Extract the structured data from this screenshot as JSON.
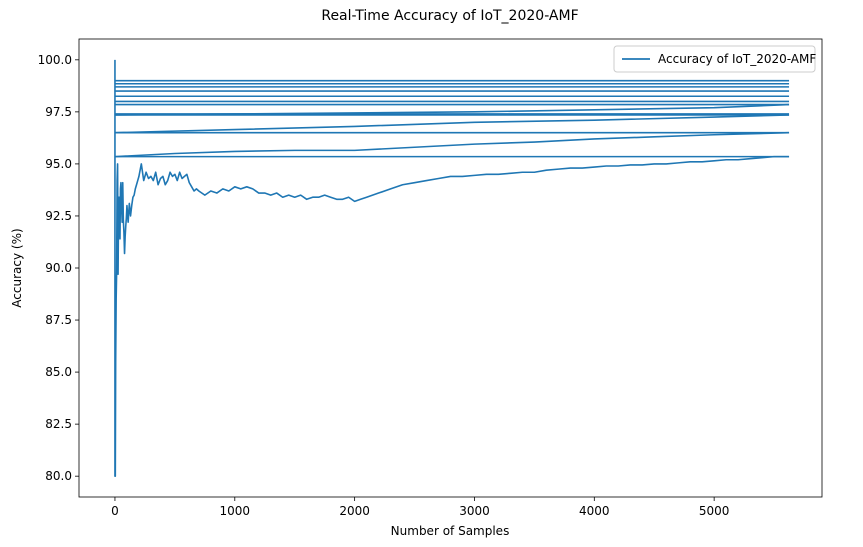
{
  "chart_data": {
    "type": "line",
    "title": "Real-Time Accuracy of IoT_2020-AMF",
    "xlabel": "Number of Samples",
    "ylabel": "Accuracy (%)",
    "xlim": [
      -300,
      5900
    ],
    "ylim": [
      79.0,
      101.0
    ],
    "x_ticks": [
      0,
      1000,
      2000,
      3000,
      4000,
      5000
    ],
    "y_ticks": [
      80.0,
      82.5,
      85.0,
      87.5,
      90.0,
      92.5,
      95.0,
      97.5,
      100.0
    ],
    "grid": false,
    "legend_position": "top-right",
    "color": "#1f77b4",
    "series": [
      {
        "name": "Accuracy of IoT_2020-AMF",
        "segments": [
          {
            "x": [
              0,
              5625
            ],
            "y": [
              99.0,
              99.0
            ]
          },
          {
            "x": [
              0,
              5625
            ],
            "y": [
              98.85,
              98.85
            ]
          },
          {
            "x": [
              0,
              5625
            ],
            "y": [
              98.7,
              98.7
            ]
          },
          {
            "x": [
              0,
              5625
            ],
            "y": [
              98.5,
              98.5
            ]
          },
          {
            "x": [
              0,
              5625
            ],
            "y": [
              98.25,
              98.25
            ]
          },
          {
            "x": [
              0,
              5625
            ],
            "y": [
              98.0,
              98.0
            ]
          },
          {
            "x": [
              0,
              5625
            ],
            "y": [
              97.85,
              97.85
            ]
          },
          {
            "x": [
              0,
              5625
            ],
            "y": [
              97.4,
              97.4
            ]
          },
          {
            "x": [
              0,
              5625
            ],
            "y": [
              97.35,
              97.35
            ]
          },
          {
            "x": [
              0,
              1000,
              2000,
              3000,
              4000,
              5000,
              5625
            ],
            "y": [
              97.35,
              97.4,
              97.45,
              97.5,
              97.6,
              97.7,
              97.85
            ]
          },
          {
            "x": [
              0,
              1000,
              2000,
              3000,
              4000,
              5000,
              5625
            ],
            "y": [
              96.5,
              96.65,
              96.8,
              97.0,
              97.1,
              97.25,
              97.35
            ]
          },
          {
            "x": [
              0,
              5625
            ],
            "y": [
              96.5,
              96.5
            ]
          },
          {
            "x": [
              0,
              500,
              1000,
              1500,
              2000,
              2500,
              3000,
              3500,
              4000,
              4500,
              5000,
              5625
            ],
            "y": [
              95.35,
              95.5,
              95.6,
              95.65,
              95.65,
              95.8,
              95.95,
              96.05,
              96.2,
              96.3,
              96.4,
              96.5
            ]
          },
          {
            "x": [
              0,
              5625
            ],
            "y": [
              95.35,
              95.35
            ]
          },
          {
            "x": [
              0,
              0,
              3,
              6,
              10,
              14,
              18,
              22,
              26,
              30,
              34,
              38,
              42,
              46,
              50,
              55,
              60,
              65,
              70,
              75,
              80,
              85,
              90,
              95,
              100,
              110,
              120,
              130,
              140,
              150,
              160,
              170,
              180,
              190,
              200,
              220,
              240,
              260,
              280,
              300,
              320,
              340,
              360,
              380,
              400,
              420,
              440,
              460,
              480,
              500,
              520,
              540,
              560,
              580,
              600,
              620,
              640,
              660,
              680,
              700,
              750,
              800,
              850,
              900,
              950,
              1000,
              1050,
              1100,
              1150,
              1200,
              1250,
              1300,
              1350,
              1400,
              1450,
              1500,
              1550,
              1600,
              1650,
              1700,
              1750,
              1800,
              1850,
              1900,
              1950,
              2000,
              2050,
              2100,
              2200,
              2300,
              2400,
              2500,
              2600,
              2700,
              2800,
              2900,
              3000,
              3100,
              3200,
              3300,
              3400,
              3500,
              3600,
              3700,
              3800,
              3900,
              4000,
              4100,
              4200,
              4300,
              4400,
              4500,
              4600,
              4700,
              4800,
              4900,
              5000,
              5100,
              5200,
              5300,
              5400,
              5500,
              5625
            ],
            "y": [
              100.0,
              80.0,
              80.0,
              85.5,
              88.5,
              89.8,
              94.2,
              95.0,
              89.7,
              92.8,
              93.4,
              92.9,
              91.4,
              93.8,
              94.1,
              93.0,
              92.2,
              94.1,
              92.3,
              91.7,
              90.7,
              91.5,
              92.0,
              92.4,
              93.0,
              92.2,
              93.1,
              92.5,
              93.0,
              93.4,
              93.5,
              93.8,
              94.0,
              94.2,
              94.4,
              95.0,
              94.2,
              94.6,
              94.3,
              94.4,
              94.2,
              94.6,
              94.0,
              94.3,
              94.4,
              94.0,
              94.2,
              94.6,
              94.4,
              94.5,
              94.2,
              94.6,
              94.3,
              94.4,
              94.5,
              94.1,
              93.9,
              93.7,
              93.8,
              93.7,
              93.5,
              93.7,
              93.6,
              93.8,
              93.7,
              93.9,
              93.8,
              93.9,
              93.8,
              93.6,
              93.6,
              93.5,
              93.6,
              93.4,
              93.5,
              93.4,
              93.5,
              93.3,
              93.4,
              93.4,
              93.5,
              93.4,
              93.3,
              93.3,
              93.4,
              93.2,
              93.3,
              93.4,
              93.6,
              93.8,
              94.0,
              94.1,
              94.2,
              94.3,
              94.4,
              94.4,
              94.45,
              94.5,
              94.5,
              94.55,
              94.6,
              94.6,
              94.7,
              94.75,
              94.8,
              94.8,
              94.85,
              94.9,
              94.9,
              94.95,
              94.95,
              95.0,
              95.0,
              95.05,
              95.1,
              95.1,
              95.15,
              95.2,
              95.2,
              95.25,
              95.3,
              95.35,
              95.35
            ]
          }
        ]
      }
    ]
  }
}
